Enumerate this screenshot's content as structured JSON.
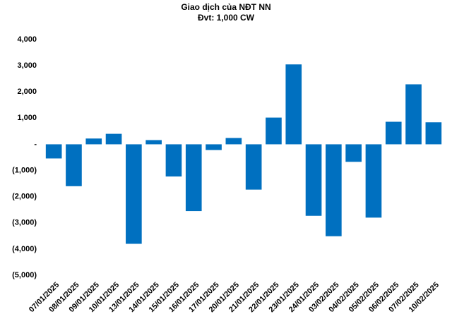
{
  "chart_data": {
    "type": "bar",
    "title": "Giao dịch của NĐT NN",
    "subtitle": "Đvt: 1,000 CW",
    "categories": [
      "07/01/2025",
      "08/01/2025",
      "09/01/2025",
      "10/01/2025",
      "13/01/2025",
      "14/01/2025",
      "15/01/2025",
      "16/01/2025",
      "17/01/2025",
      "20/01/2025",
      "21/01/2025",
      "22/01/2025",
      "23/01/2025",
      "24/01/2025",
      "03/02/2025",
      "04/02/2025",
      "05/02/2025",
      "06/02/2025",
      "07/02/2025",
      "10/02/2025"
    ],
    "values": [
      -540,
      -1600,
      220,
      400,
      -3800,
      160,
      -1230,
      -2550,
      -220,
      240,
      -1730,
      1020,
      3050,
      -2730,
      -3510,
      -670,
      -2800,
      860,
      2290,
      840
    ],
    "color": "#0070c0",
    "ylim": [
      -5000,
      4000
    ],
    "yticks": [
      {
        "value": 4000,
        "label": "4,000"
      },
      {
        "value": 3000,
        "label": "3,000"
      },
      {
        "value": 2000,
        "label": "2,000"
      },
      {
        "value": 1000,
        "label": "1,000"
      },
      {
        "value": 0,
        "label": "-"
      },
      {
        "value": -1000,
        "label": "(1,000)"
      },
      {
        "value": -2000,
        "label": "(2,000)"
      },
      {
        "value": -3000,
        "label": "(3,000)"
      },
      {
        "value": -4000,
        "label": "(4,000)"
      },
      {
        "value": -5000,
        "label": "(5,000)"
      }
    ],
    "grid": false
  }
}
